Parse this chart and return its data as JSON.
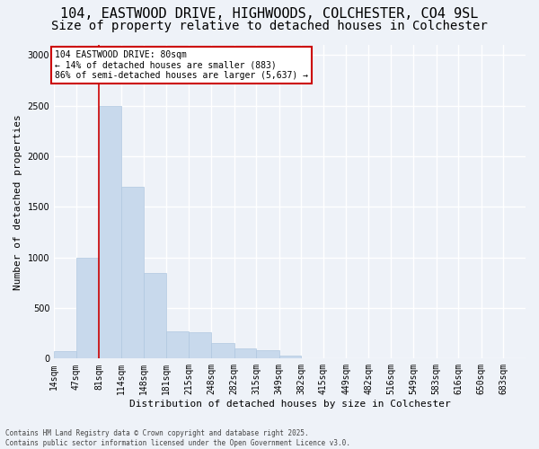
{
  "title_line1": "104, EASTWOOD DRIVE, HIGHWOODS, COLCHESTER, CO4 9SL",
  "title_line2": "Size of property relative to detached houses in Colchester",
  "xlabel": "Distribution of detached houses by size in Colchester",
  "ylabel": "Number of detached properties",
  "bar_color": "#c8d9ec",
  "bar_edge_color": "#b0c8e0",
  "vline_color": "#cc0000",
  "vline_x": 81,
  "annotation_text": "104 EASTWOOD DRIVE: 80sqm\n← 14% of detached houses are smaller (883)\n86% of semi-detached houses are larger (5,637) →",
  "annotation_box_facecolor": "#ffffff",
  "annotation_box_edgecolor": "#cc0000",
  "bin_edges": [
    14,
    47,
    81,
    114,
    148,
    181,
    215,
    248,
    282,
    315,
    349,
    382,
    415,
    449,
    482,
    516,
    549,
    583,
    616,
    650,
    683
  ],
  "bar_heights": [
    75,
    1000,
    2500,
    1700,
    850,
    270,
    260,
    155,
    100,
    80,
    30,
    5,
    0,
    0,
    0,
    0,
    0,
    0,
    0,
    0
  ],
  "ylim": [
    0,
    3100
  ],
  "yticks": [
    0,
    500,
    1000,
    1500,
    2000,
    2500,
    3000
  ],
  "background_color": "#eef2f8",
  "grid_color": "#ffffff",
  "footer_text": "Contains HM Land Registry data © Crown copyright and database right 2025.\nContains public sector information licensed under the Open Government Licence v3.0.",
  "title_fontsize": 11,
  "subtitle_fontsize": 10,
  "axis_label_fontsize": 8,
  "tick_fontsize": 7,
  "footer_fontsize": 5.5
}
